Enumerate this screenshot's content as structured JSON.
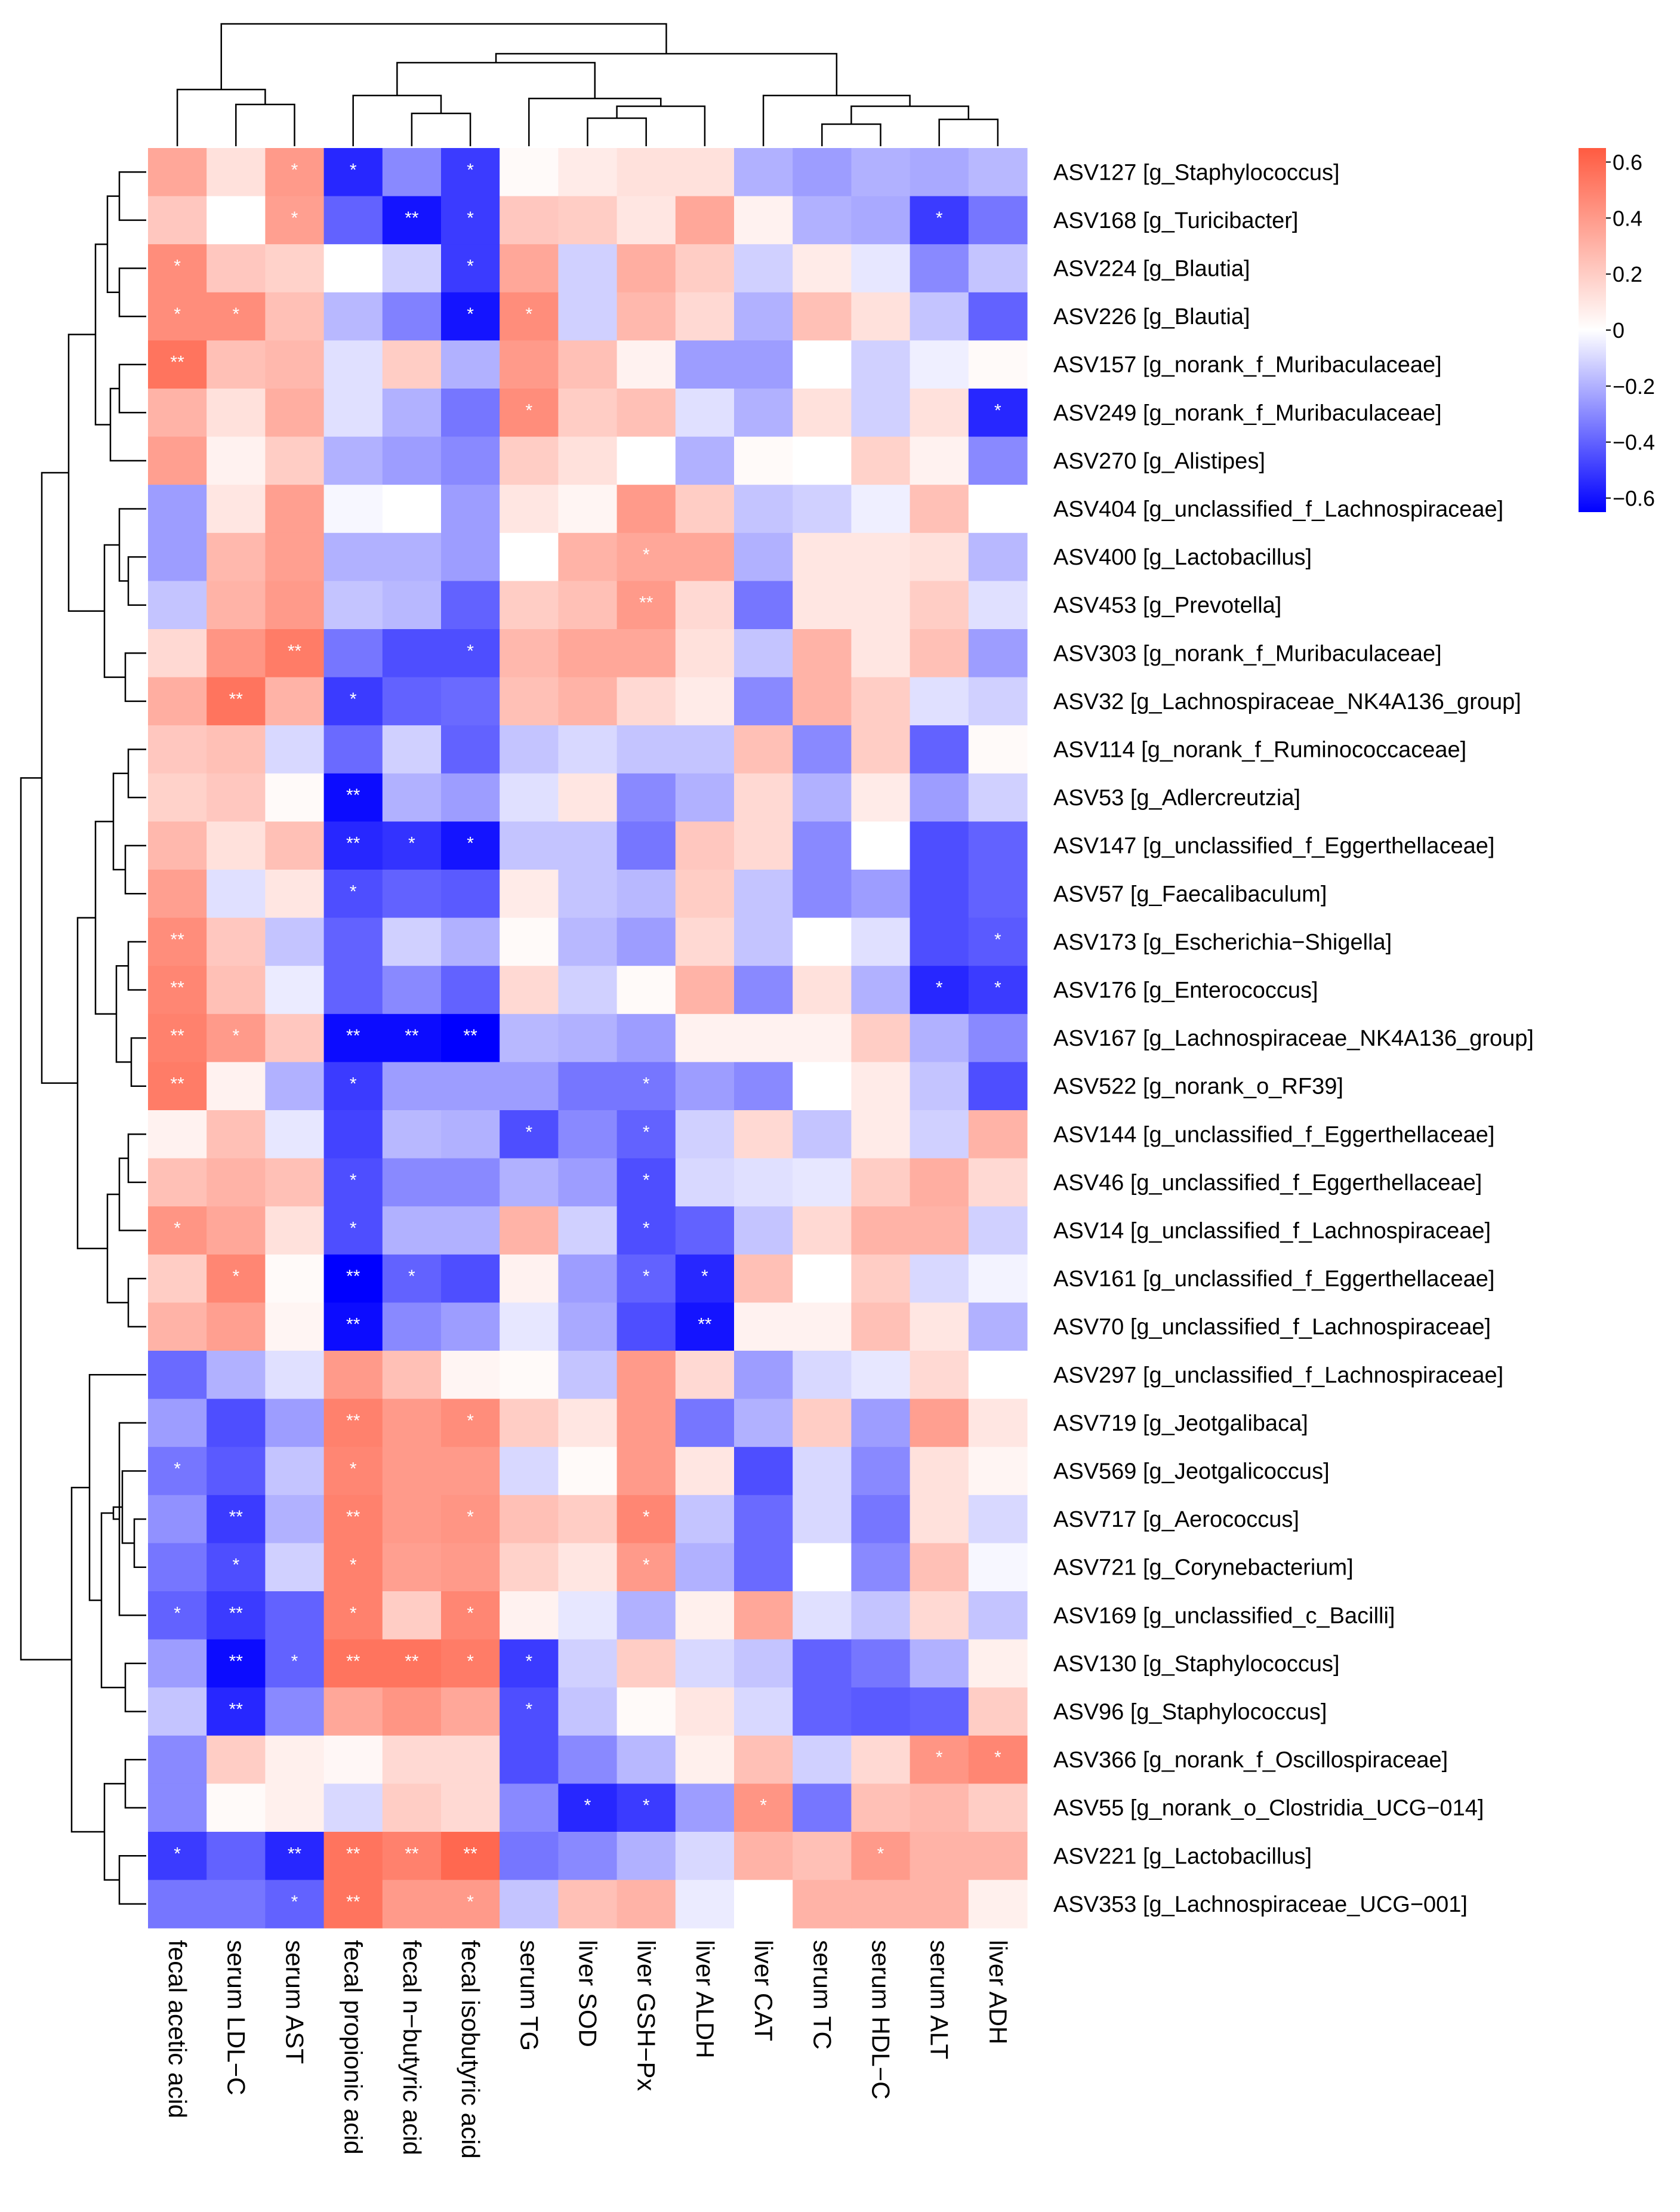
{
  "chart_data": {
    "type": "heatmap",
    "rows": [
      "ASV127 [g_Staphylococcus]",
      "ASV168 [g_Turicibacter]",
      "ASV224 [g_Blautia]",
      "ASV226 [g_Blautia]",
      "ASV157 [g_norank_f_Muribaculaceae]",
      "ASV249 [g_norank_f_Muribaculaceae]",
      "ASV270 [g_Alistipes]",
      "ASV404 [g_unclassified_f_Lachnospiraceae]",
      "ASV400 [g_Lactobacillus]",
      "ASV453 [g_Prevotella]",
      "ASV303 [g_norank_f_Muribaculaceae]",
      "ASV32 [g_Lachnospiraceae_NK4A136_group]",
      "ASV114 [g_norank_f_Ruminococcaceae]",
      "ASV53 [g_Adlercreutzia]",
      "ASV147 [g_unclassified_f_Eggerthellaceae]",
      "ASV57 [g_Faecalibaculum]",
      "ASV173 [g_Escherichia−Shigella]",
      "ASV176 [g_Enterococcus]",
      "ASV167 [g_Lachnospiraceae_NK4A136_group]",
      "ASV522 [g_norank_o_RF39]",
      "ASV144 [g_unclassified_f_Eggerthellaceae]",
      "ASV46 [g_unclassified_f_Eggerthellaceae]",
      "ASV14 [g_unclassified_f_Lachnospiraceae]",
      "ASV161 [g_unclassified_f_Eggerthellaceae]",
      "ASV70 [g_unclassified_f_Lachnospiraceae]",
      "ASV297 [g_unclassified_f_Lachnospiraceae]",
      "ASV719 [g_Jeotgalibaca]",
      "ASV569 [g_Jeotgalicoccus]",
      "ASV717 [g_Aerococcus]",
      "ASV721 [g_Corynebacterium]",
      "ASV169 [g_unclassified_c_Bacilli]",
      "ASV130 [g_Staphylococcus]",
      "ASV96 [g_Staphylococcus]",
      "ASV366 [g_norank_f_Oscillospiraceae]",
      "ASV55 [g_norank_o_Clostridia_UCG−014]",
      "ASV221 [g_Lactobacillus]",
      "ASV353 [g_Lachnospiraceae_UCG−001]"
    ],
    "columns": [
      "fecal acetic acid",
      "serum LDL−C",
      "serum AST",
      "fecal propionic acid",
      "fecal n−butyric acid",
      "fecal isobutyric acid",
      "serum TG",
      "liver SOD",
      "liver GSH−Px",
      "liver ALDH",
      "liver CAT",
      "serum TC",
      "serum HDL−C",
      "serum ALT",
      "liver ADH"
    ],
    "values": [
      [
        0.35,
        0.12,
        0.4,
        -0.55,
        -0.3,
        -0.5,
        0.02,
        0.08,
        0.12,
        0.12,
        -0.2,
        -0.25,
        -0.2,
        -0.22,
        -0.18
      ],
      [
        0.22,
        0.0,
        0.38,
        -0.4,
        -0.6,
        -0.5,
        0.22,
        0.2,
        0.1,
        0.35,
        0.05,
        -0.2,
        -0.22,
        -0.5,
        -0.35
      ],
      [
        0.45,
        0.22,
        0.18,
        0.0,
        -0.12,
        -0.5,
        0.35,
        -0.12,
        0.32,
        0.2,
        -0.12,
        0.08,
        -0.06,
        -0.3,
        -0.15
      ],
      [
        0.45,
        0.45,
        0.25,
        -0.18,
        -0.32,
        -0.6,
        0.45,
        -0.12,
        0.28,
        0.15,
        -0.2,
        0.25,
        0.12,
        -0.15,
        -0.4
      ],
      [
        0.55,
        0.25,
        0.28,
        -0.08,
        0.2,
        -0.2,
        0.4,
        0.25,
        0.05,
        -0.25,
        -0.25,
        0.0,
        -0.12,
        -0.04,
        0.02
      ],
      [
        0.3,
        0.12,
        0.32,
        -0.08,
        -0.2,
        -0.35,
        0.45,
        0.2,
        0.25,
        -0.08,
        -0.2,
        0.12,
        -0.12,
        0.12,
        -0.55
      ],
      [
        0.38,
        0.05,
        0.2,
        -0.2,
        -0.25,
        -0.3,
        0.2,
        0.12,
        0.0,
        -0.2,
        0.02,
        0.0,
        0.18,
        0.05,
        -0.3
      ],
      [
        -0.25,
        0.1,
        0.38,
        -0.02,
        0.0,
        -0.25,
        0.1,
        0.04,
        0.4,
        0.2,
        -0.15,
        -0.12,
        -0.04,
        0.25,
        0.0
      ],
      [
        -0.25,
        0.28,
        0.38,
        -0.2,
        -0.2,
        -0.25,
        0.0,
        0.3,
        0.35,
        0.35,
        -0.2,
        0.1,
        0.1,
        0.12,
        -0.18
      ],
      [
        -0.15,
        0.3,
        0.4,
        -0.15,
        -0.18,
        -0.4,
        0.2,
        0.25,
        0.4,
        0.15,
        -0.35,
        0.1,
        0.1,
        0.2,
        -0.08
      ],
      [
        0.15,
        0.42,
        0.52,
        -0.35,
        -0.45,
        -0.45,
        0.28,
        0.35,
        0.35,
        0.12,
        -0.15,
        0.3,
        0.1,
        0.25,
        -0.25
      ],
      [
        0.32,
        0.55,
        0.3,
        -0.5,
        -0.4,
        -0.38,
        0.25,
        0.3,
        0.15,
        0.08,
        -0.3,
        0.3,
        0.2,
        -0.08,
        -0.12
      ],
      [
        0.22,
        0.25,
        -0.1,
        -0.38,
        -0.12,
        -0.4,
        -0.15,
        -0.1,
        -0.15,
        -0.15,
        0.25,
        -0.3,
        0.2,
        -0.4,
        0.02
      ],
      [
        0.18,
        0.22,
        0.02,
        -0.62,
        -0.2,
        -0.25,
        -0.08,
        0.1,
        -0.3,
        -0.2,
        0.15,
        -0.2,
        0.08,
        -0.25,
        -0.12
      ],
      [
        0.28,
        0.12,
        0.25,
        -0.55,
        -0.52,
        -0.6,
        -0.15,
        -0.15,
        -0.35,
        0.22,
        0.15,
        -0.3,
        0.0,
        -0.45,
        -0.4
      ],
      [
        0.38,
        -0.08,
        0.1,
        -0.45,
        -0.4,
        -0.42,
        0.08,
        -0.15,
        -0.18,
        0.2,
        -0.15,
        -0.3,
        -0.25,
        -0.45,
        -0.4
      ],
      [
        0.45,
        0.22,
        -0.15,
        -0.4,
        -0.12,
        -0.2,
        0.02,
        -0.18,
        -0.25,
        0.15,
        -0.15,
        0.0,
        -0.08,
        -0.45,
        -0.42
      ],
      [
        0.48,
        0.25,
        -0.05,
        -0.4,
        -0.3,
        -0.4,
        0.15,
        -0.12,
        0.02,
        0.3,
        -0.3,
        0.12,
        -0.2,
        -0.55,
        -0.5
      ],
      [
        0.5,
        0.4,
        0.22,
        -0.62,
        -0.62,
        -0.65,
        -0.18,
        -0.2,
        -0.25,
        0.05,
        0.05,
        0.05,
        0.2,
        -0.2,
        -0.3
      ],
      [
        0.52,
        0.05,
        -0.2,
        -0.5,
        -0.25,
        -0.25,
        -0.25,
        -0.35,
        -0.35,
        -0.25,
        -0.3,
        0.0,
        0.08,
        -0.15,
        -0.45
      ],
      [
        0.05,
        0.25,
        -0.06,
        -0.48,
        -0.18,
        -0.2,
        -0.45,
        -0.3,
        -0.4,
        -0.12,
        0.15,
        -0.15,
        0.08,
        -0.12,
        0.3
      ],
      [
        0.25,
        0.3,
        0.25,
        -0.45,
        -0.3,
        -0.3,
        -0.2,
        -0.25,
        -0.45,
        -0.1,
        -0.08,
        -0.06,
        0.2,
        0.32,
        0.15
      ],
      [
        0.42,
        0.35,
        0.12,
        -0.45,
        -0.2,
        -0.2,
        0.3,
        -0.12,
        -0.45,
        -0.4,
        -0.15,
        0.15,
        0.3,
        0.3,
        -0.12
      ],
      [
        0.2,
        0.48,
        0.02,
        -0.65,
        -0.4,
        -0.45,
        0.05,
        -0.25,
        -0.4,
        -0.55,
        0.25,
        0.0,
        0.2,
        -0.1,
        -0.03
      ],
      [
        0.3,
        0.38,
        0.04,
        -0.62,
        -0.3,
        -0.25,
        -0.06,
        -0.22,
        -0.45,
        -0.6,
        0.05,
        0.05,
        0.25,
        0.1,
        -0.2
      ],
      [
        -0.38,
        -0.2,
        -0.08,
        0.4,
        0.25,
        0.04,
        0.02,
        -0.15,
        0.4,
        0.15,
        -0.25,
        -0.1,
        -0.06,
        0.15,
        0.0
      ],
      [
        -0.25,
        -0.45,
        -0.25,
        0.5,
        0.4,
        0.45,
        0.2,
        0.1,
        0.4,
        -0.35,
        -0.2,
        0.2,
        -0.25,
        0.38,
        0.1
      ],
      [
        -0.35,
        -0.42,
        -0.15,
        0.48,
        0.4,
        0.4,
        -0.1,
        0.02,
        0.4,
        0.1,
        -0.45,
        -0.1,
        -0.3,
        0.12,
        0.04
      ],
      [
        -0.28,
        -0.5,
        -0.2,
        0.5,
        0.4,
        0.42,
        0.25,
        0.2,
        0.48,
        -0.15,
        -0.38,
        -0.1,
        -0.35,
        0.12,
        -0.1
      ],
      [
        -0.35,
        -0.45,
        -0.12,
        0.5,
        0.38,
        0.4,
        0.18,
        0.1,
        0.4,
        -0.2,
        -0.38,
        0.0,
        -0.3,
        0.25,
        -0.02
      ],
      [
        -0.4,
        -0.5,
        -0.4,
        0.5,
        0.2,
        0.48,
        0.05,
        -0.06,
        -0.2,
        0.06,
        0.35,
        -0.08,
        -0.15,
        0.15,
        -0.15
      ],
      [
        -0.25,
        -0.62,
        -0.4,
        0.55,
        0.55,
        0.52,
        -0.5,
        -0.12,
        0.2,
        -0.1,
        -0.15,
        -0.4,
        -0.35,
        -0.2,
        0.06
      ],
      [
        -0.15,
        -0.55,
        -0.3,
        0.35,
        0.42,
        0.35,
        -0.45,
        -0.15,
        0.02,
        0.1,
        -0.1,
        -0.4,
        -0.42,
        -0.4,
        0.2
      ],
      [
        -0.3,
        0.2,
        0.06,
        0.03,
        0.15,
        0.15,
        -0.45,
        -0.3,
        -0.18,
        0.06,
        0.25,
        -0.12,
        0.15,
        0.42,
        0.48
      ],
      [
        -0.3,
        0.02,
        0.06,
        -0.1,
        0.2,
        0.15,
        -0.3,
        -0.55,
        -0.5,
        -0.25,
        0.42,
        -0.35,
        0.25,
        0.28,
        0.2
      ],
      [
        -0.5,
        -0.4,
        -0.55,
        0.55,
        0.5,
        0.6,
        -0.35,
        -0.3,
        -0.2,
        -0.1,
        0.3,
        0.25,
        0.4,
        0.3,
        0.3
      ],
      [
        -0.35,
        -0.35,
        -0.4,
        0.55,
        0.4,
        0.4,
        -0.15,
        0.25,
        0.3,
        -0.05,
        0.0,
        0.3,
        0.3,
        0.3,
        0.06
      ]
    ],
    "significance": [
      [
        "",
        "",
        "*",
        "*",
        "",
        "*",
        "",
        "",
        "",
        "",
        "",
        "",
        "",
        "",
        ""
      ],
      [
        "",
        "",
        "*",
        "",
        "**",
        "*",
        "",
        "",
        "",
        "",
        "",
        "",
        "",
        "*",
        ""
      ],
      [
        "*",
        "",
        "",
        "",
        "",
        "*",
        "",
        "",
        "",
        "",
        "",
        "",
        "",
        "",
        ""
      ],
      [
        "*",
        "*",
        "",
        "",
        "",
        "*",
        "*",
        "",
        "",
        "",
        "",
        "",
        "",
        "",
        ""
      ],
      [
        "**",
        "",
        "",
        "",
        "",
        "",
        "",
        "",
        "",
        "",
        "",
        "",
        "",
        "",
        ""
      ],
      [
        "",
        "",
        "",
        "",
        "",
        "",
        "*",
        "",
        "",
        "",
        "",
        "",
        "",
        "",
        "*"
      ],
      [
        "",
        "",
        "",
        "",
        "",
        "",
        "",
        "",
        "",
        "",
        "",
        "",
        "",
        "",
        ""
      ],
      [
        "",
        "",
        "",
        "",
        "",
        "",
        "",
        "",
        "",
        "",
        "",
        "",
        "",
        "",
        ""
      ],
      [
        "",
        "",
        "",
        "",
        "",
        "",
        "",
        "",
        "*",
        "",
        "",
        "",
        "",
        "",
        ""
      ],
      [
        "",
        "",
        "",
        "",
        "",
        "",
        "",
        "",
        "**",
        "",
        "",
        "",
        "",
        "",
        ""
      ],
      [
        "",
        "",
        "**",
        "",
        "",
        "*",
        "",
        "",
        "",
        "",
        "",
        "",
        "",
        "",
        ""
      ],
      [
        "",
        "**",
        "",
        "*",
        "",
        "",
        "",
        "",
        "",
        "",
        "",
        "",
        "",
        "",
        ""
      ],
      [
        "",
        "",
        "",
        "",
        "",
        "",
        "",
        "",
        "",
        "",
        "",
        "",
        "",
        "",
        ""
      ],
      [
        "",
        "",
        "",
        "**",
        "",
        "",
        "",
        "",
        "",
        "",
        "",
        "",
        "",
        "",
        ""
      ],
      [
        "",
        "",
        "",
        "**",
        "*",
        "*",
        "",
        "",
        "",
        "",
        "",
        "",
        "",
        "",
        ""
      ],
      [
        "",
        "",
        "",
        "*",
        "",
        "",
        "",
        "",
        "",
        "",
        "",
        "",
        "",
        "",
        ""
      ],
      [
        "**",
        "",
        "",
        "",
        "",
        "",
        "",
        "",
        "",
        "",
        "",
        "",
        "",
        "",
        "*"
      ],
      [
        "**",
        "",
        "",
        "",
        "",
        "",
        "",
        "",
        "",
        "",
        "",
        "",
        "",
        "*",
        "*"
      ],
      [
        "**",
        "*",
        "",
        "**",
        "**",
        "**",
        "",
        "",
        "",
        "",
        "",
        "",
        "",
        "",
        ""
      ],
      [
        "**",
        "",
        "",
        "*",
        "",
        "",
        "",
        "",
        "*",
        "",
        "",
        "",
        "",
        "",
        ""
      ],
      [
        "",
        "",
        "",
        "",
        "",
        "",
        "*",
        "",
        "*",
        "",
        "",
        "",
        "",
        "",
        ""
      ],
      [
        "",
        "",
        "",
        "*",
        "",
        "",
        "",
        "",
        "*",
        "",
        "",
        "",
        "",
        "",
        ""
      ],
      [
        "*",
        "",
        "",
        "*",
        "",
        "",
        "",
        "",
        "*",
        "",
        "",
        "",
        "",
        "",
        ""
      ],
      [
        "",
        "*",
        "",
        "**",
        "*",
        "",
        "",
        "",
        "*",
        "*",
        "",
        "",
        "",
        "",
        ""
      ],
      [
        "",
        "",
        "",
        "**",
        "",
        "",
        "",
        "",
        "",
        "**",
        "",
        "",
        "",
        "",
        ""
      ],
      [
        "",
        "",
        "",
        "",
        "",
        "",
        "",
        "",
        "",
        "",
        "",
        "",
        "",
        "",
        ""
      ],
      [
        "",
        "",
        "",
        "**",
        "",
        "*",
        "",
        "",
        "",
        "",
        "",
        "",
        "",
        "",
        ""
      ],
      [
        "*",
        "",
        "",
        "*",
        "",
        "",
        "",
        "",
        "",
        "",
        "",
        "",
        "",
        "",
        ""
      ],
      [
        "",
        "**",
        "",
        "**",
        "",
        "*",
        "",
        "",
        "*",
        "",
        "",
        "",
        "",
        "",
        ""
      ],
      [
        "",
        "*",
        "",
        "*",
        "",
        "",
        "",
        "",
        "*",
        "",
        "",
        "",
        "",
        "",
        ""
      ],
      [
        "*",
        "**",
        "",
        "*",
        "",
        "*",
        "",
        "",
        "",
        "",
        "",
        "",
        "",
        "",
        ""
      ],
      [
        "",
        "**",
        "*",
        "**",
        "**",
        "*",
        "*",
        "",
        "",
        "",
        "",
        "",
        "",
        "",
        ""
      ],
      [
        "",
        "**",
        "",
        "",
        "",
        "",
        "*",
        "",
        "",
        "",
        "",
        "",
        "",
        "",
        ""
      ],
      [
        "",
        "",
        "",
        "",
        "",
        "",
        "",
        "",
        "",
        "",
        "",
        "",
        "",
        "*",
        "*"
      ],
      [
        "",
        "",
        "",
        "",
        "",
        "",
        "",
        "*",
        "*",
        "",
        "*",
        "",
        "",
        "",
        ""
      ],
      [
        "*",
        "",
        "**",
        "**",
        "**",
        "**",
        "",
        "",
        "",
        "",
        "",
        "",
        "*",
        "",
        ""
      ],
      [
        "",
        "",
        "*",
        "**",
        "",
        "*",
        "",
        "",
        "",
        "",
        "",
        "",
        "",
        "",
        ""
      ]
    ],
    "color_scale": {
      "min": -0.65,
      "max": 0.65,
      "low": "#0000FF",
      "mid": "#FFFFFF",
      "high": "#FF5B41",
      "ticks": [
        0.6,
        0.4,
        0.2,
        0,
        -0.2,
        -0.4,
        -0.6
      ],
      "tick_labels": [
        "0.6",
        "0.4",
        "0.2",
        "0",
        "−0.2",
        "−0.4",
        "−0.6"
      ]
    },
    "grid": false,
    "legend": "right"
  }
}
